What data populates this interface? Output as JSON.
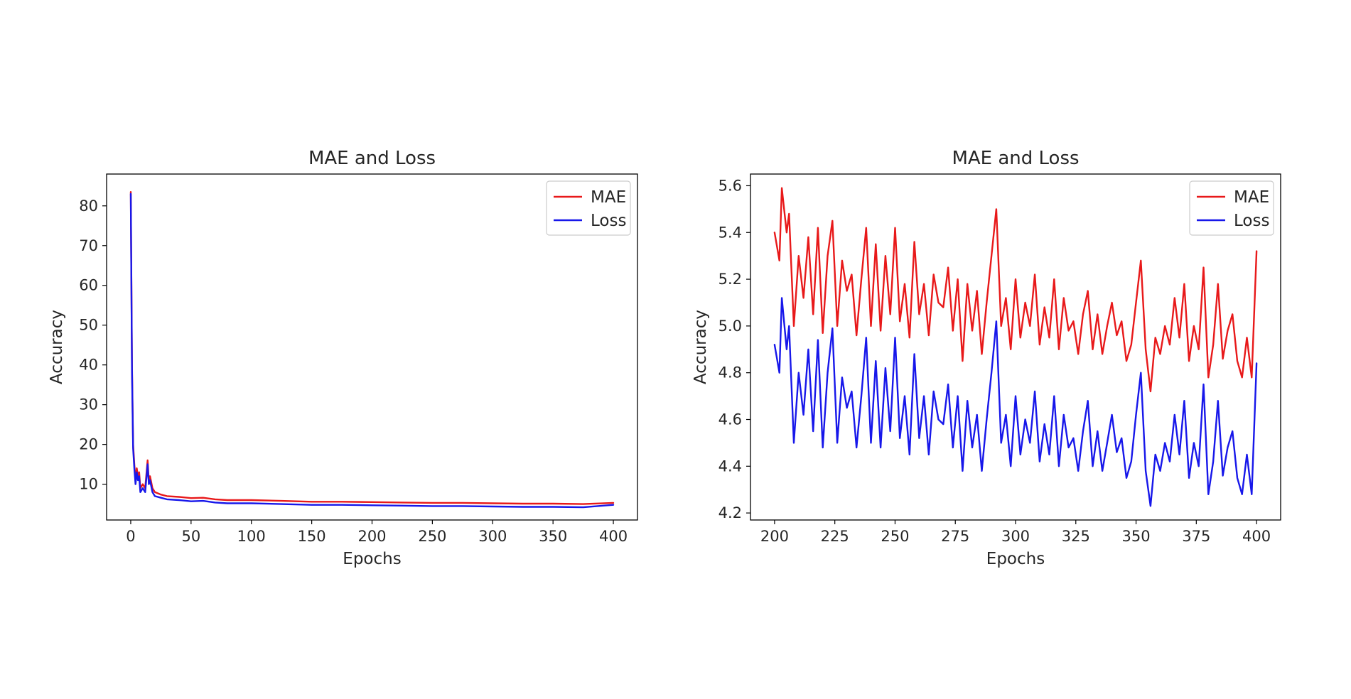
{
  "chart_data": [
    {
      "type": "line",
      "title": "MAE and Loss",
      "xlabel": "Epochs",
      "ylabel": "Accuracy",
      "xlim": [
        -20,
        420
      ],
      "ylim": [
        1.0,
        88.0
      ],
      "xticks": [
        0,
        50,
        100,
        150,
        200,
        250,
        300,
        350,
        400
      ],
      "yticks": [
        10,
        20,
        30,
        40,
        50,
        60,
        70,
        80
      ],
      "xtick_labels": [
        "0",
        "50",
        "100",
        "150",
        "200",
        "250",
        "300",
        "350",
        "400"
      ],
      "ytick_labels": [
        "10",
        "20",
        "30",
        "40",
        "50",
        "60",
        "70",
        "80"
      ],
      "legend": "top-right",
      "grid": false,
      "series": [
        {
          "name": "MAE",
          "color": "#e8191a",
          "x": [
            0,
            1,
            2,
            3,
            4,
            5,
            6,
            7,
            8,
            10,
            12,
            14,
            15,
            16,
            18,
            20,
            25,
            30,
            40,
            50,
            60,
            70,
            80,
            100,
            125,
            150,
            175,
            200,
            225,
            250,
            275,
            300,
            325,
            350,
            375,
            400
          ],
          "y": [
            83.5,
            40,
            20,
            15,
            11,
            14,
            12,
            13,
            9,
            10,
            9,
            16,
            11,
            12,
            9,
            8,
            7.4,
            7.0,
            6.8,
            6.5,
            6.6,
            6.2,
            6.0,
            6.0,
            5.8,
            5.6,
            5.6,
            5.5,
            5.4,
            5.3,
            5.3,
            5.2,
            5.1,
            5.1,
            5.0,
            5.3
          ]
        },
        {
          "name": "Loss",
          "color": "#1717ea",
          "x": [
            0,
            1,
            2,
            3,
            4,
            5,
            6,
            7,
            8,
            10,
            12,
            14,
            15,
            16,
            18,
            20,
            25,
            30,
            40,
            50,
            60,
            70,
            80,
            100,
            125,
            150,
            175,
            200,
            225,
            250,
            275,
            300,
            325,
            350,
            375,
            400
          ],
          "y": [
            83.0,
            39,
            19,
            14,
            10,
            13,
            11,
            12,
            8,
            9,
            8,
            15,
            10,
            11,
            8,
            7,
            6.6,
            6.2,
            6.0,
            5.7,
            5.8,
            5.4,
            5.2,
            5.2,
            5.0,
            4.8,
            4.8,
            4.7,
            4.6,
            4.5,
            4.5,
            4.4,
            4.3,
            4.3,
            4.2,
            4.8
          ]
        }
      ]
    },
    {
      "type": "line",
      "title": "MAE and Loss",
      "xlabel": "Epochs",
      "ylabel": "Accuracy",
      "xlim": [
        190,
        410
      ],
      "ylim": [
        4.17,
        5.65
      ],
      "xticks": [
        200,
        225,
        250,
        275,
        300,
        325,
        350,
        375,
        400
      ],
      "yticks": [
        4.2,
        4.4,
        4.6,
        4.8,
        5.0,
        5.2,
        5.4,
        5.6
      ],
      "xtick_labels": [
        "200",
        "225",
        "250",
        "275",
        "300",
        "325",
        "350",
        "375",
        "400"
      ],
      "ytick_labels": [
        "4.2",
        "4.4",
        "4.6",
        "4.8",
        "5.0",
        "5.2",
        "5.4",
        "5.6"
      ],
      "legend": "top-right",
      "grid": false,
      "series": [
        {
          "name": "MAE",
          "color": "#e8191a",
          "x": [
            200,
            202,
            203,
            205,
            206,
            208,
            210,
            212,
            214,
            216,
            218,
            220,
            222,
            224,
            226,
            228,
            230,
            232,
            234,
            236,
            238,
            240,
            242,
            244,
            246,
            248,
            250,
            252,
            254,
            256,
            258,
            260,
            262,
            264,
            266,
            268,
            270,
            272,
            274,
            276,
            278,
            280,
            282,
            284,
            286,
            288,
            290,
            292,
            294,
            296,
            298,
            300,
            302,
            304,
            306,
            308,
            310,
            312,
            314,
            316,
            318,
            320,
            322,
            324,
            326,
            328,
            330,
            332,
            334,
            336,
            338,
            340,
            342,
            344,
            346,
            348,
            350,
            352,
            354,
            356,
            358,
            360,
            362,
            364,
            366,
            368,
            370,
            372,
            374,
            376,
            378,
            380,
            382,
            384,
            386,
            388,
            390,
            392,
            394,
            396,
            398,
            400
          ],
          "y": [
            5.4,
            5.28,
            5.59,
            5.4,
            5.48,
            5.0,
            5.3,
            5.12,
            5.38,
            5.05,
            5.42,
            4.97,
            5.3,
            5.45,
            5.0,
            5.28,
            5.15,
            5.22,
            4.96,
            5.2,
            5.42,
            5.0,
            5.35,
            4.98,
            5.3,
            5.05,
            5.42,
            5.02,
            5.18,
            4.95,
            5.36,
            5.05,
            5.18,
            4.96,
            5.22,
            5.1,
            5.08,
            5.25,
            4.98,
            5.2,
            4.85,
            5.18,
            4.98,
            5.15,
            4.88,
            5.1,
            5.3,
            5.5,
            5.0,
            5.12,
            4.9,
            5.2,
            4.95,
            5.1,
            5.0,
            5.22,
            4.92,
            5.08,
            4.95,
            5.2,
            4.9,
            5.12,
            4.98,
            5.02,
            4.88,
            5.05,
            5.15,
            4.9,
            5.05,
            4.88,
            5.0,
            5.1,
            4.96,
            5.02,
            4.85,
            4.92,
            5.1,
            5.28,
            4.9,
            4.72,
            4.95,
            4.88,
            5.0,
            4.92,
            5.12,
            4.95,
            5.18,
            4.85,
            5.0,
            4.9,
            5.25,
            4.78,
            4.92,
            5.18,
            4.86,
            4.98,
            5.05,
            4.85,
            4.78,
            4.95,
            4.78,
            5.32
          ]
        },
        {
          "name": "Loss",
          "color": "#1717ea",
          "x": [
            200,
            202,
            203,
            205,
            206,
            208,
            210,
            212,
            214,
            216,
            218,
            220,
            222,
            224,
            226,
            228,
            230,
            232,
            234,
            236,
            238,
            240,
            242,
            244,
            246,
            248,
            250,
            252,
            254,
            256,
            258,
            260,
            262,
            264,
            266,
            268,
            270,
            272,
            274,
            276,
            278,
            280,
            282,
            284,
            286,
            288,
            290,
            292,
            294,
            296,
            298,
            300,
            302,
            304,
            306,
            308,
            310,
            312,
            314,
            316,
            318,
            320,
            322,
            324,
            326,
            328,
            330,
            332,
            334,
            336,
            338,
            340,
            342,
            344,
            346,
            348,
            350,
            352,
            354,
            356,
            358,
            360,
            362,
            364,
            366,
            368,
            370,
            372,
            374,
            376,
            378,
            380,
            382,
            384,
            386,
            388,
            390,
            392,
            394,
            396,
            398,
            400
          ],
          "y": [
            4.92,
            4.8,
            5.12,
            4.9,
            5.0,
            4.5,
            4.8,
            4.62,
            4.9,
            4.55,
            4.94,
            4.48,
            4.8,
            4.99,
            4.5,
            4.78,
            4.65,
            4.72,
            4.48,
            4.7,
            4.95,
            4.5,
            4.85,
            4.48,
            4.82,
            4.55,
            4.95,
            4.52,
            4.7,
            4.45,
            4.88,
            4.52,
            4.7,
            4.45,
            4.72,
            4.6,
            4.58,
            4.75,
            4.48,
            4.7,
            4.38,
            4.68,
            4.48,
            4.62,
            4.38,
            4.6,
            4.8,
            5.02,
            4.5,
            4.62,
            4.4,
            4.7,
            4.45,
            4.6,
            4.5,
            4.72,
            4.42,
            4.58,
            4.45,
            4.7,
            4.4,
            4.62,
            4.48,
            4.52,
            4.38,
            4.55,
            4.68,
            4.4,
            4.55,
            4.38,
            4.5,
            4.62,
            4.46,
            4.52,
            4.35,
            4.42,
            4.62,
            4.8,
            4.38,
            4.23,
            4.45,
            4.38,
            4.5,
            4.42,
            4.62,
            4.45,
            4.68,
            4.35,
            4.5,
            4.4,
            4.75,
            4.28,
            4.42,
            4.68,
            4.36,
            4.48,
            4.55,
            4.35,
            4.28,
            4.45,
            4.28,
            4.84
          ]
        }
      ]
    }
  ]
}
